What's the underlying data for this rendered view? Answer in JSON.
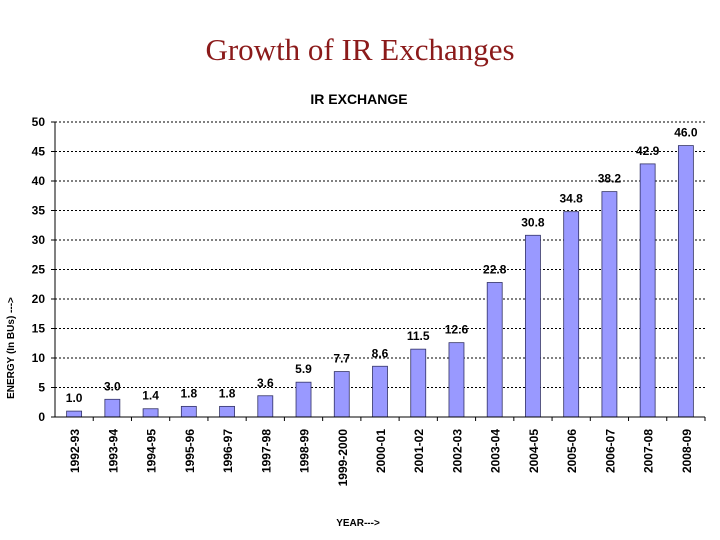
{
  "page": {
    "title": "Growth of IR Exchanges"
  },
  "chart_data": {
    "type": "bar",
    "title": "IR EXCHANGE",
    "xlabel": "YEAR--->",
    "ylabel": "ENERGY (In BUs) --->",
    "ylim": [
      0,
      50
    ],
    "yticks": [
      0,
      5,
      10,
      15,
      20,
      25,
      30,
      35,
      40,
      45,
      50
    ],
    "grid": true,
    "bar_color": "#9999ff",
    "categories": [
      "1992-93",
      "1993-94",
      "1994-95",
      "1995-96",
      "1996-97",
      "1997-98",
      "1998-99",
      "1999-2000",
      "2000-01",
      "2001-02",
      "2002-03",
      "2003-04",
      "2004-05",
      "2005-06",
      "2006-07",
      "2007-08",
      "2008-09"
    ],
    "values": [
      1.0,
      3.0,
      1.4,
      1.8,
      1.8,
      3.6,
      5.9,
      7.7,
      8.6,
      11.5,
      12.6,
      22.8,
      30.8,
      34.8,
      38.2,
      42.9,
      46.0
    ],
    "labels": [
      "1.0",
      "3.0",
      "1.4",
      "1.8",
      "1.8",
      "3.6",
      "5.9",
      "7.7",
      "8.6",
      "11.5",
      "12.6",
      "22.8",
      "30.8",
      "34.8",
      "38.2",
      "42.9",
      "46.0"
    ]
  }
}
